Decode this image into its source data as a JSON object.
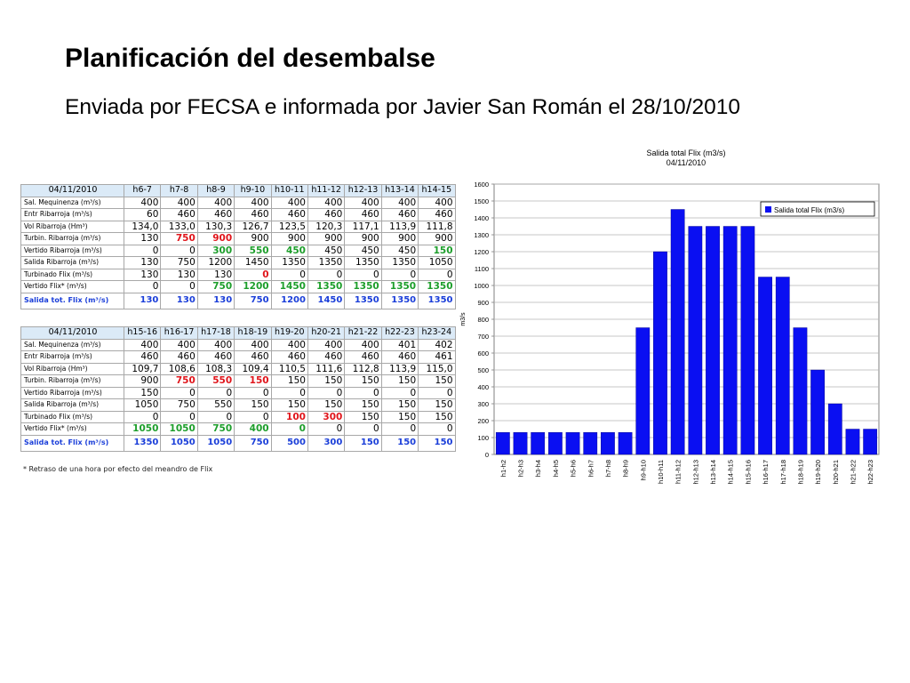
{
  "header": {
    "title": "Planificación del desembalse",
    "subtitle": "Enviada por FECSA e informada por Javier San Román el 28/10/2010"
  },
  "colors": {
    "header_bg": "#dbeaf7",
    "total_blue": "#1a3ed9",
    "red": "#e0151b",
    "green": "#1d9e2b",
    "bar": "#0a0ff2"
  },
  "tables": [
    {
      "date": "04/11/2010",
      "hours": [
        "h6-7",
        "h7-8",
        "h8-9",
        "h9-10",
        "h10-11",
        "h11-12",
        "h12-13",
        "h13-14",
        "h14-15"
      ],
      "rows": [
        {
          "label": "Sal. Mequinenza (m³/s)",
          "values": [
            "400",
            "400",
            "400",
            "400",
            "400",
            "400",
            "400",
            "400",
            "400"
          ]
        },
        {
          "label": "Entr Ribarroja (m³/s)",
          "values": [
            "60",
            "460",
            "460",
            "460",
            "460",
            "460",
            "460",
            "460",
            "460"
          ]
        },
        {
          "label": "Vol Ribarroja (Hm³)",
          "values": [
            "134,0",
            "133,0",
            "130,3",
            "126,7",
            "123,5",
            "120,3",
            "117,1",
            "113,9",
            "111,8"
          ]
        },
        {
          "label": "Turbin. Ribarroja (m³/s)",
          "values": [
            "130",
            "750",
            "900",
            "900",
            "900",
            "900",
            "900",
            "900",
            "900"
          ],
          "styles": [
            "",
            "red",
            "red",
            "",
            "",
            "",
            "",
            "",
            ""
          ]
        },
        {
          "label": "Vertido Ribarroja (m³/s)",
          "values": [
            "0",
            "0",
            "300",
            "550",
            "450",
            "450",
            "450",
            "450",
            "150"
          ],
          "styles": [
            "",
            "",
            "green",
            "green",
            "green",
            "",
            "",
            "",
            "green"
          ]
        },
        {
          "label": "Salida Ribarroja (m³/s)",
          "values": [
            "130",
            "750",
            "1200",
            "1450",
            "1350",
            "1350",
            "1350",
            "1350",
            "1050"
          ]
        },
        {
          "label": "Turbinado Flix (m³/s)",
          "values": [
            "130",
            "130",
            "130",
            "0",
            "0",
            "0",
            "0",
            "0",
            "0"
          ],
          "styles": [
            "",
            "",
            "",
            "red",
            "",
            "",
            "",
            "",
            ""
          ]
        },
        {
          "label": "Vertido Flix* (m³/s)",
          "values": [
            "0",
            "0",
            "750",
            "1200",
            "1450",
            "1350",
            "1350",
            "1350",
            "1350"
          ],
          "styles": [
            "",
            "",
            "green",
            "green",
            "green",
            "green",
            "green",
            "green",
            "green"
          ]
        }
      ],
      "total": {
        "label": "Salida tot. Flix (m³/s)",
        "values": [
          "130",
          "130",
          "130",
          "750",
          "1200",
          "1450",
          "1350",
          "1350",
          "1350"
        ]
      }
    },
    {
      "date": "04/11/2010",
      "hours": [
        "h15-16",
        "h16-17",
        "h17-18",
        "h18-19",
        "h19-20",
        "h20-21",
        "h21-22",
        "h22-23",
        "h23-24"
      ],
      "rows": [
        {
          "label": "Sal. Mequinenza (m³/s)",
          "values": [
            "400",
            "400",
            "400",
            "400",
            "400",
            "400",
            "400",
            "401",
            "402"
          ]
        },
        {
          "label": "Entr Ribarroja (m³/s)",
          "values": [
            "460",
            "460",
            "460",
            "460",
            "460",
            "460",
            "460",
            "460",
            "461"
          ]
        },
        {
          "label": "Vol Ribarroja (Hm³)",
          "values": [
            "109,7",
            "108,6",
            "108,3",
            "109,4",
            "110,5",
            "111,6",
            "112,8",
            "113,9",
            "115,0"
          ]
        },
        {
          "label": "Turbin. Ribarroja (m³/s)",
          "values": [
            "900",
            "750",
            "550",
            "150",
            "150",
            "150",
            "150",
            "150",
            "150"
          ],
          "styles": [
            "",
            "red",
            "red",
            "red",
            "",
            "",
            "",
            "",
            ""
          ]
        },
        {
          "label": "Vertido Ribarroja (m³/s)",
          "values": [
            "150",
            "0",
            "0",
            "0",
            "0",
            "0",
            "0",
            "0",
            "0"
          ]
        },
        {
          "label": "Salida Ribarroja (m³/s)",
          "values": [
            "1050",
            "750",
            "550",
            "150",
            "150",
            "150",
            "150",
            "150",
            "150"
          ]
        },
        {
          "label": "Turbinado Flix (m³/s)",
          "values": [
            "0",
            "0",
            "0",
            "0",
            "100",
            "300",
            "150",
            "150",
            "150"
          ],
          "styles": [
            "",
            "",
            "",
            "",
            "red",
            "red",
            "",
            "",
            ""
          ]
        },
        {
          "label": "Vertido Flix* (m³/s)",
          "values": [
            "1050",
            "1050",
            "750",
            "400",
            "0",
            "0",
            "0",
            "0",
            "0"
          ],
          "styles": [
            "green",
            "green",
            "green",
            "green",
            "green",
            "",
            "",
            "",
            ""
          ]
        }
      ],
      "total": {
        "label": "Salida tot. Flix (m³/s)",
        "values": [
          "1350",
          "1050",
          "1050",
          "750",
          "500",
          "300",
          "150",
          "150",
          "150"
        ]
      }
    }
  ],
  "footnote": "* Retraso de una hora por efecto del meandro de Flix",
  "chart_data": {
    "type": "bar",
    "title": "Salida total Flix (m3/s)",
    "subtitle": "04/11/2010",
    "ylabel": "m3/s",
    "ylim": [
      0,
      1600
    ],
    "yticks": [
      0,
      100,
      200,
      300,
      400,
      500,
      600,
      700,
      800,
      900,
      1000,
      1100,
      1200,
      1300,
      1400,
      1500,
      1600
    ],
    "grid": true,
    "legend_position": "top-right",
    "categories": [
      "h1-h2",
      "h2-h3",
      "h3-h4",
      "h4-h5",
      "h5-h6",
      "h6-h7",
      "h7-h8",
      "h8-h9",
      "h9-h10",
      "h10-h11",
      "h11-h12",
      "h12-h13",
      "h13-h14",
      "h14-h15",
      "h15-h16",
      "h16-h17",
      "h17-h18",
      "h18-h19",
      "h19-h20",
      "h20-h21",
      "h21-h22",
      "h22-h23"
    ],
    "series": [
      {
        "name": "Salida total Flix (m3/s)",
        "color": "#0a0ff2",
        "values": [
          130,
          130,
          130,
          130,
          130,
          130,
          130,
          130,
          750,
          1200,
          1450,
          1350,
          1350,
          1350,
          1350,
          1050,
          1050,
          750,
          500,
          300,
          150,
          150
        ]
      }
    ]
  }
}
